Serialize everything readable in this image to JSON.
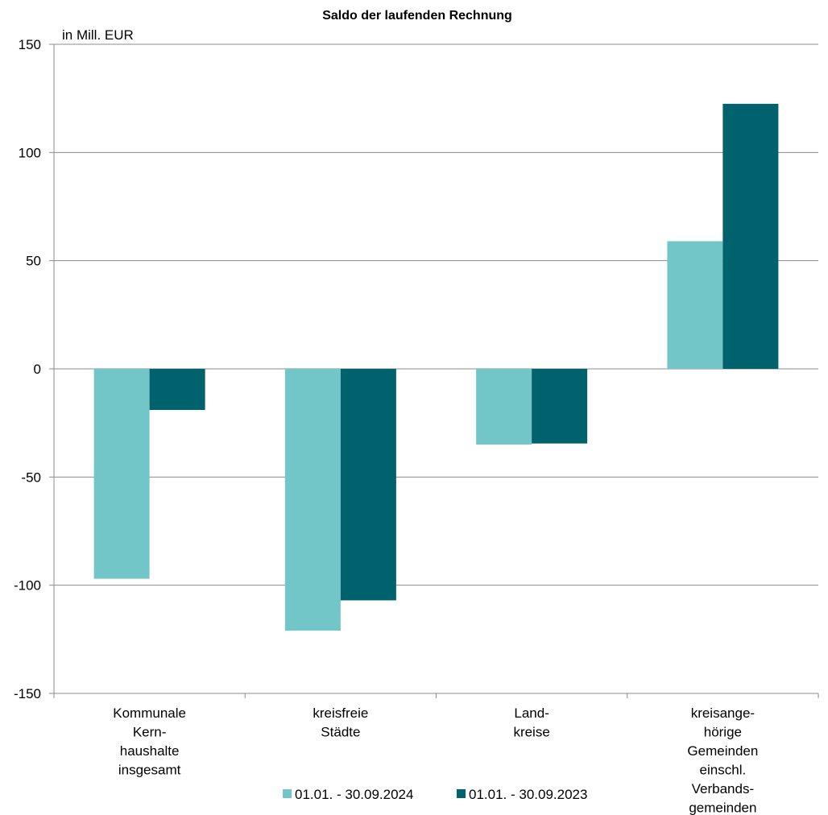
{
  "chart_data": {
    "type": "bar",
    "title": "Saldo der laufenden Rechnung",
    "unit_label": "in Mill. EUR",
    "xlabel": "",
    "ylabel": "",
    "ylim": [
      -150,
      150
    ],
    "yticks": [
      150,
      100,
      50,
      0,
      -50,
      -100,
      -150
    ],
    "grid": true,
    "legend_position": "bottom",
    "categories": [
      [
        "Kommunale",
        "Kern-",
        "haushalte",
        "insgesamt"
      ],
      [
        "kreisfreie",
        "Städte"
      ],
      [
        "Land-",
        "kreise"
      ],
      [
        "kreisange-",
        "hörige",
        "Gemeinden",
        "einschl.",
        "Verbands-",
        "gemeinden"
      ]
    ],
    "series": [
      {
        "name": "01.01. - 30.09.2024",
        "color": "#73c6c8",
        "values": [
          -97,
          -121,
          -35,
          59
        ]
      },
      {
        "name": "01.01. - 30.09.2023",
        "color": "#00626d",
        "values": [
          -19,
          -107,
          -34.5,
          122.5
        ]
      }
    ]
  }
}
